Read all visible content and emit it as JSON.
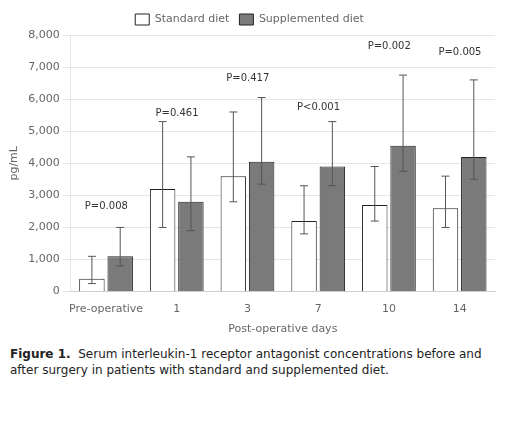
{
  "chart_data": {
    "type": "bar",
    "categories": [
      "Pre-operative",
      "1",
      "3",
      "7",
      "10",
      "14"
    ],
    "series": [
      {
        "name": "Standard diet",
        "color": "#ffffff",
        "values": [
          400,
          3200,
          3600,
          2200,
          2700,
          2600
        ],
        "error_low": [
          150,
          1200,
          800,
          400,
          500,
          600
        ],
        "error_high": [
          700,
          2100,
          2000,
          1100,
          1200,
          1000
        ]
      },
      {
        "name": "Supplemented diet",
        "color": "#7a7a7a",
        "values": [
          1100,
          2800,
          4050,
          3900,
          4550,
          4200
        ],
        "error_low": [
          300,
          900,
          700,
          600,
          800,
          700
        ],
        "error_high": [
          900,
          1400,
          2000,
          1400,
          2200,
          2400
        ]
      }
    ],
    "xlabel": "Post-operative days",
    "ylabel": "pg/mL",
    "ylim": [
      0,
      8000
    ],
    "yticks": [
      0,
      {
        "value": 1000,
        "label": "1,000"
      },
      {
        "value": 2000,
        "label": "2,000"
      },
      {
        "value": 3000,
        "label": "3,000"
      },
      {
        "value": 4000,
        "label": "4,000"
      },
      {
        "value": 5000,
        "label": "5,000"
      },
      {
        "value": 6000,
        "label": "6,000"
      },
      {
        "value": 7000,
        "label": "7,000"
      },
      {
        "value": 8000,
        "label": "8,000"
      }
    ],
    "grid": true,
    "legend": "top",
    "annotations": [
      {
        "text": "P=0.008",
        "x": "Pre-operative",
        "y": 2500
      },
      {
        "text": "P=0.461",
        "x": "1",
        "y": 5400
      },
      {
        "text": "P=0.417",
        "x": "3",
        "y": 6500
      },
      {
        "text": "P<0.001",
        "x": "7",
        "y": 5600
      },
      {
        "text": "P=0.002",
        "x": "10",
        "y": 7500
      },
      {
        "text": "P=0.005",
        "x": "14",
        "y": 7300
      }
    ],
    "caption": [
      "Figure 1.",
      "Serum interleukin-1 receptor antagonist concentrations before and after surgery in patients with standard and supplemented diet."
    ]
  }
}
